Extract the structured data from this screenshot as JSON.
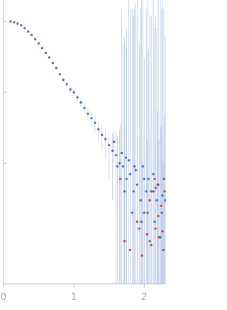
{
  "chart_data": {
    "type": "scatter",
    "yscale": "log",
    "xlim": [
      0,
      2.31
    ],
    "ylim": [
      0.0002,
      2
    ],
    "xticks": [
      0,
      1,
      2
    ],
    "yticks": [
      0.01,
      0.1,
      1
    ],
    "error_color": "#b9c9e6",
    "series": [
      {
        "color": "#3b68c0",
        "x": [
          0.1,
          0.15,
          0.2,
          0.25,
          0.3,
          0.35,
          0.4,
          0.45,
          0.5,
          0.55,
          0.6,
          0.65,
          0.7,
          0.75,
          0.8,
          0.85,
          0.9,
          0.95,
          1.0,
          1.05,
          1.1,
          1.15,
          1.2,
          1.25,
          1.3,
          1.35,
          1.4,
          1.45,
          1.5,
          1.55,
          1.6,
          1.65,
          1.7,
          1.75,
          1.8,
          1.85,
          1.9,
          1.95,
          2.0,
          2.05,
          2.1,
          2.15,
          2.2,
          2.25,
          2.3,
          1.57,
          1.62,
          1.68,
          1.72,
          1.78,
          1.83,
          1.88,
          1.93,
          1.98,
          2.03,
          2.08,
          2.13,
          2.18,
          2.23,
          2.28,
          1.66,
          1.74,
          1.86,
          1.96,
          2.06,
          2.16,
          2.26
        ],
        "values": [
          1.0,
          0.97,
          0.93,
          0.88,
          0.8,
          0.72,
          0.64,
          0.56,
          0.49,
          0.42,
          0.36,
          0.31,
          0.26,
          0.22,
          0.18,
          0.15,
          0.13,
          0.11,
          0.1,
          0.085,
          0.072,
          0.06,
          0.05,
          0.043,
          0.037,
          0.03,
          0.025,
          0.022,
          0.018,
          0.015,
          0.013,
          0.01,
          0.009,
          0.006,
          0.007,
          0.004,
          0.005,
          0.003,
          0.006,
          0.002,
          0.004,
          0.0015,
          0.005,
          0.002,
          0.003,
          0.02,
          0.009,
          0.014,
          0.004,
          0.011,
          0.002,
          0.008,
          0.0012,
          0.009,
          0.004,
          0.0008,
          0.007,
          0.003,
          0.0009,
          0.006,
          0.006,
          0.012,
          0.009,
          0.0015,
          0.006,
          0.0045,
          0.0035
        ],
        "errors": [
          0.01,
          0.01,
          0.01,
          0.01,
          0.01,
          0.01,
          0.01,
          0.01,
          0.01,
          0.01,
          0.01,
          0.01,
          0.01,
          0.01,
          0.01,
          0.01,
          0.01,
          0.01,
          0.01,
          0.01,
          0.01,
          0.01,
          0.01,
          0.01,
          0.01,
          0.01,
          0.01,
          0.01,
          0.012,
          0.012,
          0.015,
          0.02,
          0.5,
          0.8,
          1.5,
          1.2,
          2,
          1.5,
          0.3,
          2,
          1.2,
          0.8,
          2,
          1.5,
          0.6,
          0.01,
          0.015,
          1.5,
          0.6,
          2,
          1.5,
          1.8,
          0.5,
          2,
          1.5,
          1.2,
          2,
          0.8,
          2,
          1.5,
          0.03,
          0.4,
          1.5,
          2,
          0.4,
          1.2,
          2
        ]
      },
      {
        "color": "#d2332e",
        "x": [
          1.72,
          1.8,
          1.9,
          1.97,
          2.0,
          2.04,
          2.08,
          2.1,
          2.13,
          2.16,
          2.19,
          2.21,
          2.24,
          2.27,
          2.29,
          2.15,
          2.2,
          2.26
        ],
        "values": [
          0.0008,
          0.0006,
          0.0015,
          0.0005,
          0.002,
          0.001,
          0.003,
          0.0007,
          0.004,
          0.0012,
          0.005,
          0.0009,
          0.0025,
          0.0006,
          0.004,
          0.006,
          0.0018,
          0.0011
        ],
        "errors": [
          0.01,
          0.01,
          0.02,
          0.01,
          0.03,
          0.02,
          0.03,
          0.01,
          0.04,
          0.02,
          0.05,
          0.02,
          0.03,
          0.01,
          0.04,
          0.05,
          0.02,
          0.02
        ]
      }
    ]
  }
}
